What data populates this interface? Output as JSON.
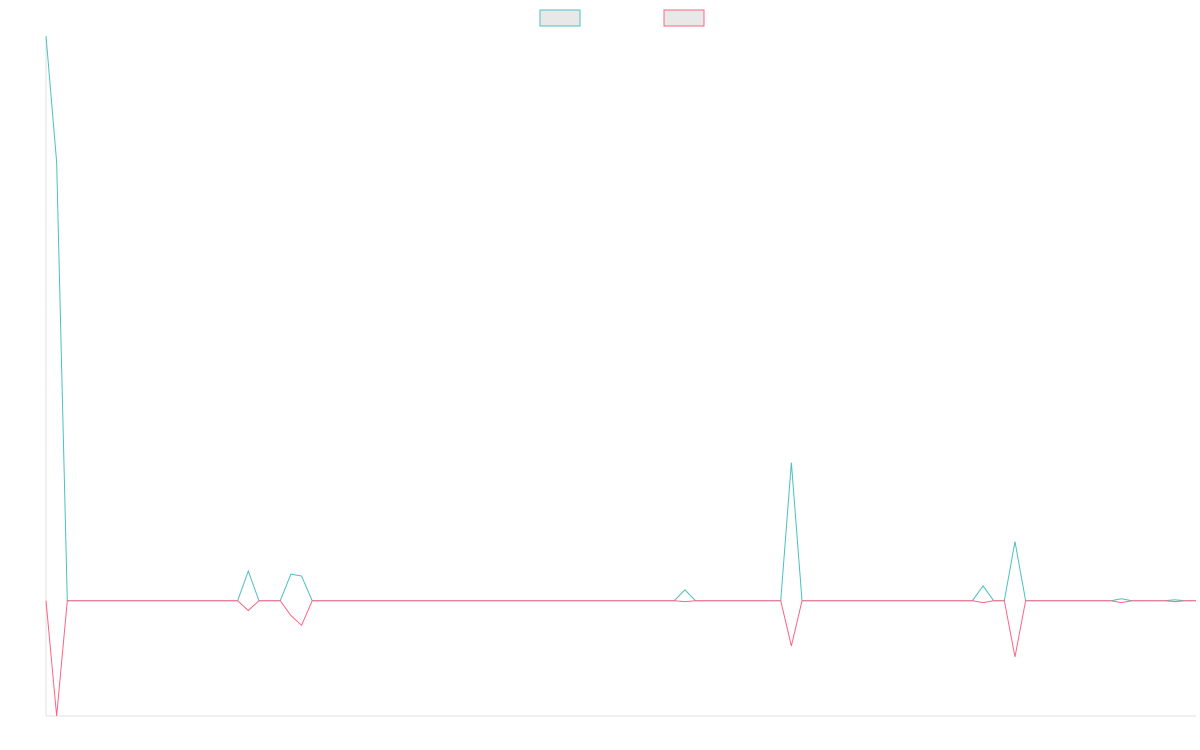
{
  "chart_data": {
    "type": "line",
    "title": "",
    "xlabel": "",
    "ylabel": "",
    "x": [
      0,
      1,
      2,
      3,
      4,
      5,
      6,
      7,
      8,
      9,
      10,
      11,
      12,
      13,
      14,
      15,
      16,
      17,
      18,
      19,
      20,
      21,
      22,
      23,
      24,
      25,
      26,
      27,
      28,
      29,
      30,
      31,
      32,
      33,
      34,
      35,
      36,
      37,
      38,
      39,
      40,
      41,
      42,
      43,
      44,
      45,
      46,
      47,
      48,
      49,
      50,
      51,
      52,
      53,
      54,
      55,
      56,
      57,
      58,
      59,
      60,
      61,
      62,
      63,
      64,
      65,
      66,
      67,
      68,
      69,
      70,
      71,
      72,
      73,
      74,
      75,
      76,
      77,
      78,
      79,
      80,
      81,
      82,
      83,
      84,
      85,
      86,
      87,
      88,
      89,
      90,
      91,
      92,
      93,
      94,
      95,
      96,
      97,
      98,
      99,
      100,
      101,
      102,
      103,
      104,
      105,
      106,
      107,
      108
    ],
    "ylim": [
      -11.7,
      57.3
    ],
    "grid": false,
    "legend": "top",
    "series": [
      {
        "color": "#4bc0c0",
        "values": [
          57.3,
          44.5,
          0,
          0,
          0,
          0,
          0,
          0,
          0,
          0,
          0,
          0,
          0,
          0,
          0,
          0,
          0,
          0,
          0,
          3,
          0,
          0,
          0,
          2.7,
          2.5,
          0,
          0,
          0,
          0,
          0,
          0,
          0,
          0,
          0,
          0,
          0,
          0,
          0,
          0,
          0,
          0,
          0,
          0,
          0,
          0,
          0,
          0,
          0,
          0,
          0,
          0,
          0,
          0,
          0,
          0,
          0,
          0,
          0,
          0,
          0,
          1.1,
          0,
          0,
          0,
          0,
          0,
          0,
          0,
          0,
          0,
          14,
          0,
          0,
          0,
          0,
          0,
          0,
          0,
          0,
          0,
          0,
          0,
          0,
          0,
          0,
          0,
          0,
          0,
          1.5,
          0,
          0,
          6,
          0,
          0,
          0,
          0,
          0,
          0,
          0,
          0,
          0,
          0.2,
          0,
          0,
          0,
          0,
          0.1,
          0,
          0
        ]
      },
      {
        "color": "#ff6384",
        "values": [
          0,
          -11.7,
          0,
          0,
          0,
          0,
          0,
          0,
          0,
          0,
          0,
          0,
          0,
          0,
          0,
          0,
          0,
          0,
          0,
          -1,
          0,
          0,
          0,
          -1.5,
          -2.5,
          0,
          0,
          0,
          0,
          0,
          0,
          0,
          0,
          0,
          0,
          0,
          0,
          0,
          0,
          0,
          0,
          0,
          0,
          0,
          0,
          0,
          0,
          0,
          0,
          0,
          0,
          0,
          0,
          0,
          0,
          0,
          0,
          0,
          0,
          0,
          -0.1,
          0,
          0,
          0,
          0,
          0,
          0,
          0,
          0,
          0,
          -4.6,
          0,
          0,
          0,
          0,
          0,
          0,
          0,
          0,
          0,
          0,
          0,
          0,
          0,
          0,
          0,
          0,
          0,
          -0.2,
          0,
          0,
          -5.7,
          0,
          0,
          0,
          0,
          0,
          0,
          0,
          0,
          0,
          -0.2,
          0,
          0,
          0,
          0,
          -0.1,
          0,
          0
        ]
      }
    ],
    "legend_fill": "#e8e8e8"
  }
}
